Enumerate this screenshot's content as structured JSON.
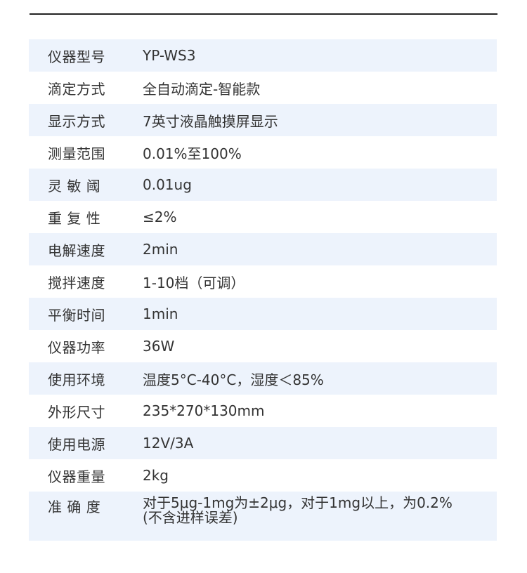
{
  "spec_table": {
    "rows": [
      {
        "label": "仪器型号",
        "value": "YP-WS3"
      },
      {
        "label": "滴定方式",
        "value": "全自动滴定-智能款"
      },
      {
        "label": "显示方式",
        "value": "7英寸液晶触摸屏显示"
      },
      {
        "label": "测量范围",
        "value": "0.01%至100%"
      },
      {
        "label": "灵 敏 阈",
        "value": "0.01ug"
      },
      {
        "label": "重 复 性",
        "value": "≤2%"
      },
      {
        "label": "电解速度",
        "value": "2min"
      },
      {
        "label": "搅拌速度",
        "value": "1-10档（可调）"
      },
      {
        "label": "平衡时间",
        "value": "1min"
      },
      {
        "label": "仪器功率",
        "value": "36W"
      },
      {
        "label": "使用环境",
        "value": "温度5°C-40°C，湿度＜85%"
      },
      {
        "label": "外形尺寸",
        "value": "235*270*130mm"
      },
      {
        "label": "使用电源",
        "value": "12V/3A"
      },
      {
        "label": "仪器重量",
        "value": "2kg"
      },
      {
        "label": "准 确 度",
        "value": "对于5μg-1mg为±2μg，对于1mg以上，为0.2%(不含进样误差)"
      }
    ]
  }
}
